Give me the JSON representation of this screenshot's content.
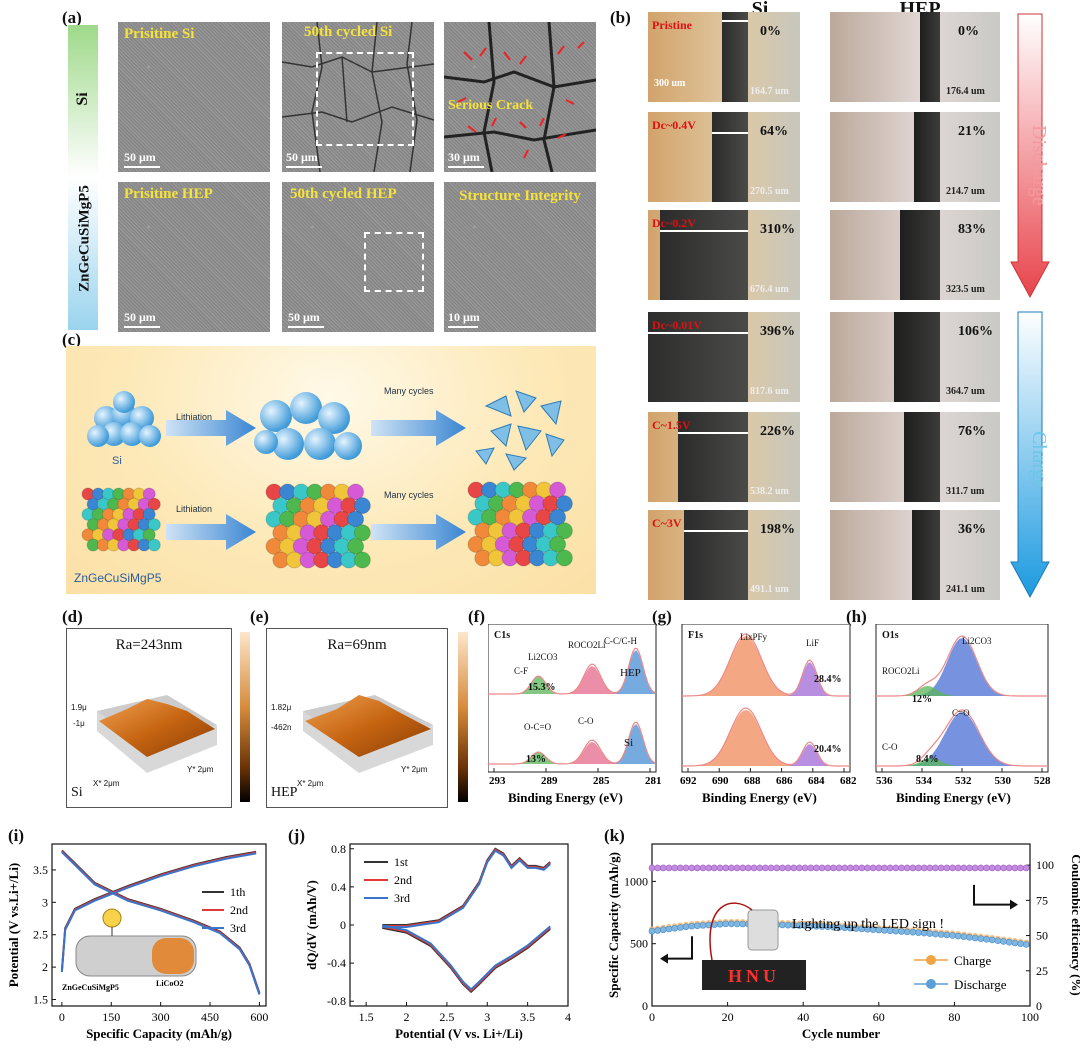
{
  "panels": {
    "a": "(a)",
    "b": "(b)",
    "c": "(c)",
    "d": "(d)",
    "e": "(e)",
    "f": "(f)",
    "g": "(g)",
    "h": "(h)",
    "i": "(i)",
    "j": "(j)",
    "k": "(k)"
  },
  "a": {
    "row_si": "Si",
    "row_hep": "ZnGeCuSiMgP5",
    "images": [
      {
        "title": "Prisitine  Si",
        "scale": "50 μm"
      },
      {
        "title": "50th cycled Si",
        "scale": "50 μm"
      },
      {
        "title": "Serious Crack",
        "scale": "30 μm"
      },
      {
        "title": "Prisitine  HEP",
        "scale": "50 μm"
      },
      {
        "title": "50th cycled HEP",
        "scale": "50 μm"
      },
      {
        "title": "Structure Integrity",
        "scale": "10 μm"
      }
    ]
  },
  "b": {
    "col_si": "Si",
    "col_hep": "HEP",
    "scale": "300 um",
    "discharge": "Discharge",
    "charge": "Charge",
    "rows": [
      {
        "state": "Pristine",
        "si_pct": "0%",
        "si_w": "164.7 um",
        "hep_pct": "0%",
        "hep_w": "176.4 um"
      },
      {
        "state": "Dc~0.4V",
        "si_pct": "64%",
        "si_w": "270.5 um",
        "hep_pct": "21%",
        "hep_w": "214.7 um"
      },
      {
        "state": "Dc~0.2V",
        "si_pct": "310%",
        "si_w": "676.4 um",
        "hep_pct": "83%",
        "hep_w": "323.5 um"
      },
      {
        "state": "Dc~0.01V",
        "si_pct": "396%",
        "si_w": "817.6 um",
        "hep_pct": "106%",
        "hep_w": "364.7 um"
      },
      {
        "state": "C~1.5V",
        "si_pct": "226%",
        "si_w": "538.2 um",
        "hep_pct": "76%",
        "hep_w": "311.7 um"
      },
      {
        "state": "C~3V",
        "si_pct": "198%",
        "si_w": "491.1 um",
        "hep_pct": "36%",
        "hep_w": "241.1 um"
      }
    ]
  },
  "c": {
    "lithiation": "Lithiation",
    "many_cycles": "Many cycles",
    "si": "Si",
    "hep": "ZnGeCuSiMgP5"
  },
  "d": {
    "ra": "Ra=243nm",
    "label": "Si",
    "z1": "1.9μ",
    "z2": "-1μ",
    "x": "X* 2μm",
    "y": "Y* 2μm"
  },
  "e": {
    "ra": "Ra=69nm",
    "label": "HEP",
    "z1": "1.82μ",
    "z2": "-462n",
    "x": "X* 2μm",
    "y": "Y* 2μm"
  },
  "f": {
    "title": "C1s",
    "xlabel": "Binding Energy (eV)",
    "ticks": [
      "293",
      "289",
      "285",
      "281"
    ],
    "labels": {
      "cf": "C-F",
      "li2co3": "Li2CO3",
      "roco2li": "ROCO2Li",
      "cc": "C-C/C-H",
      "hep": "HEP",
      "pct1": "15.3%",
      "oco": "O-C=O",
      "co": "C-O",
      "si": "Si",
      "pct2": "13%"
    }
  },
  "g": {
    "title": "F1s",
    "xlabel": "Binding Energy (eV)",
    "ticks": [
      "692",
      "690",
      "688",
      "686",
      "684",
      "682"
    ],
    "labels": {
      "lipf": "LixPFy",
      "lif": "LiF",
      "pct1": "28.4%",
      "pct2": "20.4%"
    }
  },
  "h": {
    "title": "O1s",
    "xlabel": "Binding Energy (eV)",
    "ticks": [
      "536",
      "534",
      "532",
      "530",
      "528"
    ],
    "labels": {
      "roco": "ROCO2Li",
      "li2co3": "Li2CO3",
      "pct1": "12%",
      "co_dbl": "C=O",
      "co": "C-O",
      "pct2": "8.4%"
    }
  },
  "chart_data": [
    {
      "id": "i",
      "type": "line",
      "xlabel": "Specific Capacity (mAh/g)",
      "ylabel": "Potential (V vs.Li+/Li)",
      "xlim": [
        -30,
        620
      ],
      "ylim": [
        1.4,
        3.9
      ],
      "xticks": [
        0,
        150,
        300,
        450,
        600
      ],
      "yticks": [
        1.5,
        2.0,
        2.5,
        3.0,
        3.5
      ],
      "series": [
        {
          "name": "1th",
          "color": "#333333"
        },
        {
          "name": "2nd",
          "color": "#e03a3a"
        },
        {
          "name": "3rd",
          "color": "#3a74c8"
        }
      ],
      "discharge_x": [
        0,
        40,
        100,
        200,
        300,
        400,
        480,
        540,
        570,
        590,
        600
      ],
      "discharge_y": [
        3.8,
        3.6,
        3.3,
        3.05,
        2.9,
        2.72,
        2.55,
        2.3,
        2.05,
        1.75,
        1.6
      ],
      "charge_x": [
        0,
        10,
        40,
        100,
        200,
        300,
        400,
        500,
        590
      ],
      "charge_y": [
        1.95,
        2.6,
        2.9,
        3.05,
        3.25,
        3.43,
        3.58,
        3.7,
        3.78
      ],
      "inset": {
        "anode": "ZnGeCuSiMgP5",
        "cathode": "LiCoO2"
      }
    },
    {
      "id": "j",
      "type": "line",
      "xlabel": "Potential (V vs. Li+/Li)",
      "ylabel": "dQ/dV (mAh/V)",
      "xlim": [
        1.3,
        4.0
      ],
      "ylim": [
        -0.85,
        0.85
      ],
      "xticks": [
        1.5,
        2.0,
        2.5,
        3.0,
        3.5,
        4.0
      ],
      "yticks": [
        -0.8,
        -0.4,
        0.0,
        0.4,
        0.8
      ],
      "series": [
        {
          "name": "1st",
          "color": "#333333"
        },
        {
          "name": "2nd",
          "color": "#e03a3a"
        },
        {
          "name": "3rd",
          "color": "#3a74c8"
        }
      ],
      "lower_x": [
        1.7,
        2.0,
        2.3,
        2.55,
        2.7,
        2.8,
        2.9,
        3.1,
        3.3,
        3.5,
        3.78
      ],
      "lower_y": [
        -0.03,
        -0.08,
        -0.22,
        -0.45,
        -0.62,
        -0.7,
        -0.62,
        -0.45,
        -0.35,
        -0.24,
        -0.04
      ],
      "upper_x": [
        1.7,
        2.0,
        2.4,
        2.7,
        2.9,
        3.0,
        3.1,
        3.2,
        3.3,
        3.4,
        3.5,
        3.6,
        3.7,
        3.78
      ],
      "upper_y": [
        0.0,
        0.0,
        0.05,
        0.2,
        0.45,
        0.68,
        0.8,
        0.75,
        0.62,
        0.7,
        0.62,
        0.62,
        0.6,
        0.66
      ]
    },
    {
      "id": "k",
      "type": "scatter",
      "xlabel": "Cycle number",
      "ylabel": "Specific Capacity (mAh/g)",
      "y2label": "Coulombic efficiency (%)",
      "xlim": [
        0,
        100
      ],
      "ylim": [
        0,
        1300
      ],
      "y2lim": [
        0,
        115
      ],
      "xticks": [
        0,
        20,
        40,
        60,
        80,
        100
      ],
      "yticks": [
        0,
        500,
        1000
      ],
      "y2ticks": [
        0,
        25,
        50,
        75,
        100
      ],
      "series": [
        {
          "name": "Charge",
          "color": "#f0a442"
        },
        {
          "name": "Discharge",
          "color": "#5c9fd6"
        }
      ],
      "capacity_x": [
        0,
        10,
        20,
        30,
        40,
        50,
        60,
        70,
        80,
        90,
        100
      ],
      "capacity_y": [
        600,
        640,
        660,
        655,
        645,
        630,
        610,
        590,
        565,
        530,
        490
      ],
      "ce_value": 98,
      "annotation": "Lighting up the LED sign !",
      "led": "HNU"
    }
  ]
}
